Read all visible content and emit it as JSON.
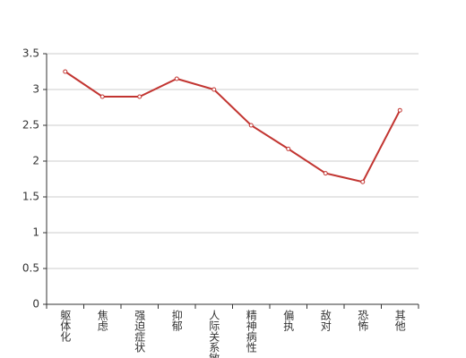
{
  "chart_data": {
    "type": "line",
    "categories": [
      "躯体化",
      "焦虑",
      "强迫症状",
      "抑郁",
      "人际关系敏感",
      "精神病性",
      "偏执",
      "敌对",
      "恐怖",
      "其他"
    ],
    "values": [
      3.25,
      2.9,
      2.9,
      3.15,
      3.0,
      2.5,
      2.17,
      1.83,
      1.71,
      2.71
    ],
    "color": "#c23531",
    "ylim": [
      0,
      3.5
    ],
    "yticks": [
      0,
      0.5,
      1,
      1.5,
      2,
      2.5,
      3,
      3.5
    ],
    "grid": true
  }
}
